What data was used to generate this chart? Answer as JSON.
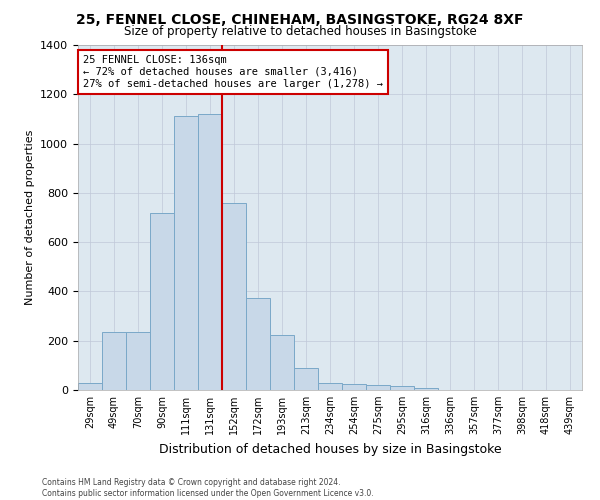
{
  "title_line1": "25, FENNEL CLOSE, CHINEHAM, BASINGSTOKE, RG24 8XF",
  "title_line2": "Size of property relative to detached houses in Basingstoke",
  "xlabel": "Distribution of detached houses by size in Basingstoke",
  "ylabel": "Number of detached properties",
  "bin_labels": [
    "29sqm",
    "49sqm",
    "70sqm",
    "90sqm",
    "111sqm",
    "131sqm",
    "152sqm",
    "172sqm",
    "193sqm",
    "213sqm",
    "234sqm",
    "254sqm",
    "275sqm",
    "295sqm",
    "316sqm",
    "336sqm",
    "357sqm",
    "377sqm",
    "398sqm",
    "418sqm",
    "439sqm"
  ],
  "bar_heights": [
    30,
    235,
    235,
    720,
    1110,
    1120,
    760,
    375,
    225,
    90,
    30,
    25,
    22,
    15,
    10,
    0,
    0,
    0,
    0,
    0,
    0
  ],
  "bar_color": "#c8d8e8",
  "bar_edge_color": "#7aa8c8",
  "vline_color": "#cc0000",
  "vline_x": 5.5,
  "annotation_line1": "25 FENNEL CLOSE: 136sqm",
  "annotation_line2": "← 72% of detached houses are smaller (3,416)",
  "annotation_line3": "27% of semi-detached houses are larger (1,278) →",
  "annotation_box_color": "#cc0000",
  "ylim": [
    0,
    1400
  ],
  "yticks": [
    0,
    200,
    400,
    600,
    800,
    1000,
    1200,
    1400
  ],
  "grid_color": "#c0c8d8",
  "bg_color": "#dde8f0",
  "footer_line1": "Contains HM Land Registry data © Crown copyright and database right 2024.",
  "footer_line2": "Contains public sector information licensed under the Open Government Licence v3.0."
}
